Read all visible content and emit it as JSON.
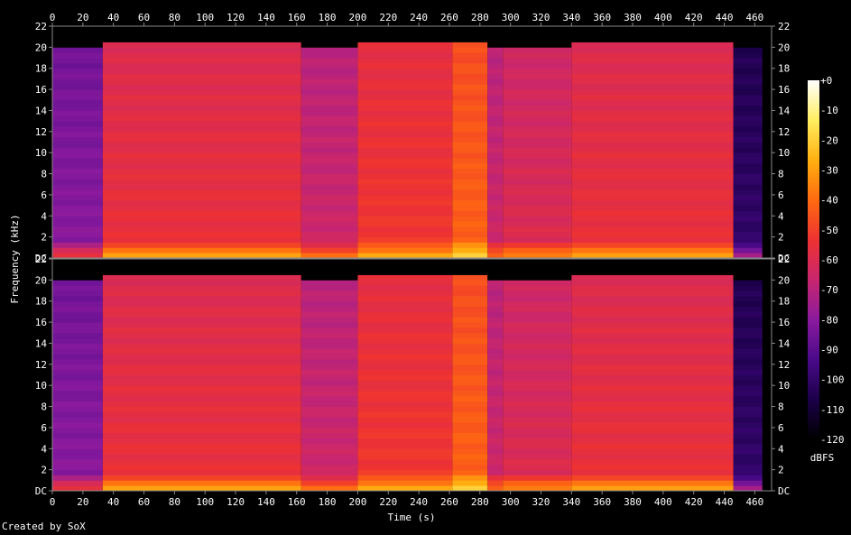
{
  "chart_data": {
    "type": "heatmap",
    "xlabel": "Time (s)",
    "ylabel": "Frequency (kHz)",
    "xlim": [
      0,
      471
    ],
    "ylim": [
      0,
      22
    ],
    "x_ticks": [
      0,
      20,
      40,
      60,
      80,
      100,
      120,
      140,
      160,
      180,
      200,
      220,
      240,
      260,
      280,
      300,
      320,
      340,
      360,
      380,
      400,
      420,
      440,
      460
    ],
    "y_ticks": [
      0,
      2,
      4,
      6,
      8,
      10,
      12,
      14,
      16,
      18,
      20,
      22
    ],
    "y_tick_labels": [
      "DC",
      "2",
      "4",
      "6",
      "8",
      "10",
      "12",
      "14",
      "16",
      "18",
      "20",
      "22"
    ],
    "colorbar": {
      "label": "dBFS",
      "range": [
        -120,
        0
      ],
      "ticks": [
        0,
        -10,
        -20,
        -30,
        -40,
        -50,
        -60,
        -70,
        -80,
        -90,
        -100,
        -110,
        -120
      ],
      "tick_labels": [
        "+0",
        "-10",
        "-20",
        "-30",
        "-40",
        "-50",
        "-60",
        "-70",
        "-80",
        "-90",
        "-100",
        "-110",
        "-120"
      ],
      "colors": [
        "#000000",
        "#1b0049",
        "#4a0a8a",
        "#8b1a9e",
        "#c8266e",
        "#ee3232",
        "#ff6a10",
        "#ffb010",
        "#ffee60",
        "#ffffff"
      ]
    },
    "channels": [
      {
        "segments": [
          {
            "start": 0,
            "end": 33,
            "level_db": -80,
            "cutoff_khz": 20
          },
          {
            "start": 33,
            "end": 163,
            "level_db": -55,
            "cutoff_khz": 20.1
          },
          {
            "start": 163,
            "end": 200,
            "level_db": -65,
            "cutoff_khz": 20
          },
          {
            "start": 200,
            "end": 262,
            "level_db": -52,
            "cutoff_khz": 20.1
          },
          {
            "start": 262,
            "end": 285,
            "level_db": -42,
            "cutoff_khz": 20.3
          },
          {
            "start": 285,
            "end": 295,
            "level_db": -65,
            "cutoff_khz": 20
          },
          {
            "start": 295,
            "end": 340,
            "level_db": -60,
            "cutoff_khz": 20
          },
          {
            "start": 340,
            "end": 446,
            "level_db": -55,
            "cutoff_khz": 20.1
          },
          {
            "start": 446,
            "end": 465,
            "level_db": -100,
            "cutoff_khz": 20
          },
          {
            "start": 465,
            "end": 471,
            "level_db": -120,
            "cutoff_khz": 0
          }
        ]
      },
      {
        "segments": [
          {
            "start": 0,
            "end": 33,
            "level_db": -80,
            "cutoff_khz": 20
          },
          {
            "start": 33,
            "end": 163,
            "level_db": -55,
            "cutoff_khz": 20.1
          },
          {
            "start": 163,
            "end": 200,
            "level_db": -65,
            "cutoff_khz": 20
          },
          {
            "start": 200,
            "end": 262,
            "level_db": -52,
            "cutoff_khz": 20.1
          },
          {
            "start": 262,
            "end": 285,
            "level_db": -42,
            "cutoff_khz": 20.3
          },
          {
            "start": 285,
            "end": 295,
            "level_db": -65,
            "cutoff_khz": 20
          },
          {
            "start": 295,
            "end": 340,
            "level_db": -60,
            "cutoff_khz": 20
          },
          {
            "start": 340,
            "end": 446,
            "level_db": -55,
            "cutoff_khz": 20.1
          },
          {
            "start": 446,
            "end": 465,
            "level_db": -100,
            "cutoff_khz": 20
          },
          {
            "start": 465,
            "end": 471,
            "level_db": -120,
            "cutoff_khz": 0
          }
        ]
      }
    ]
  },
  "footer": {
    "credit": "Created by SoX"
  }
}
